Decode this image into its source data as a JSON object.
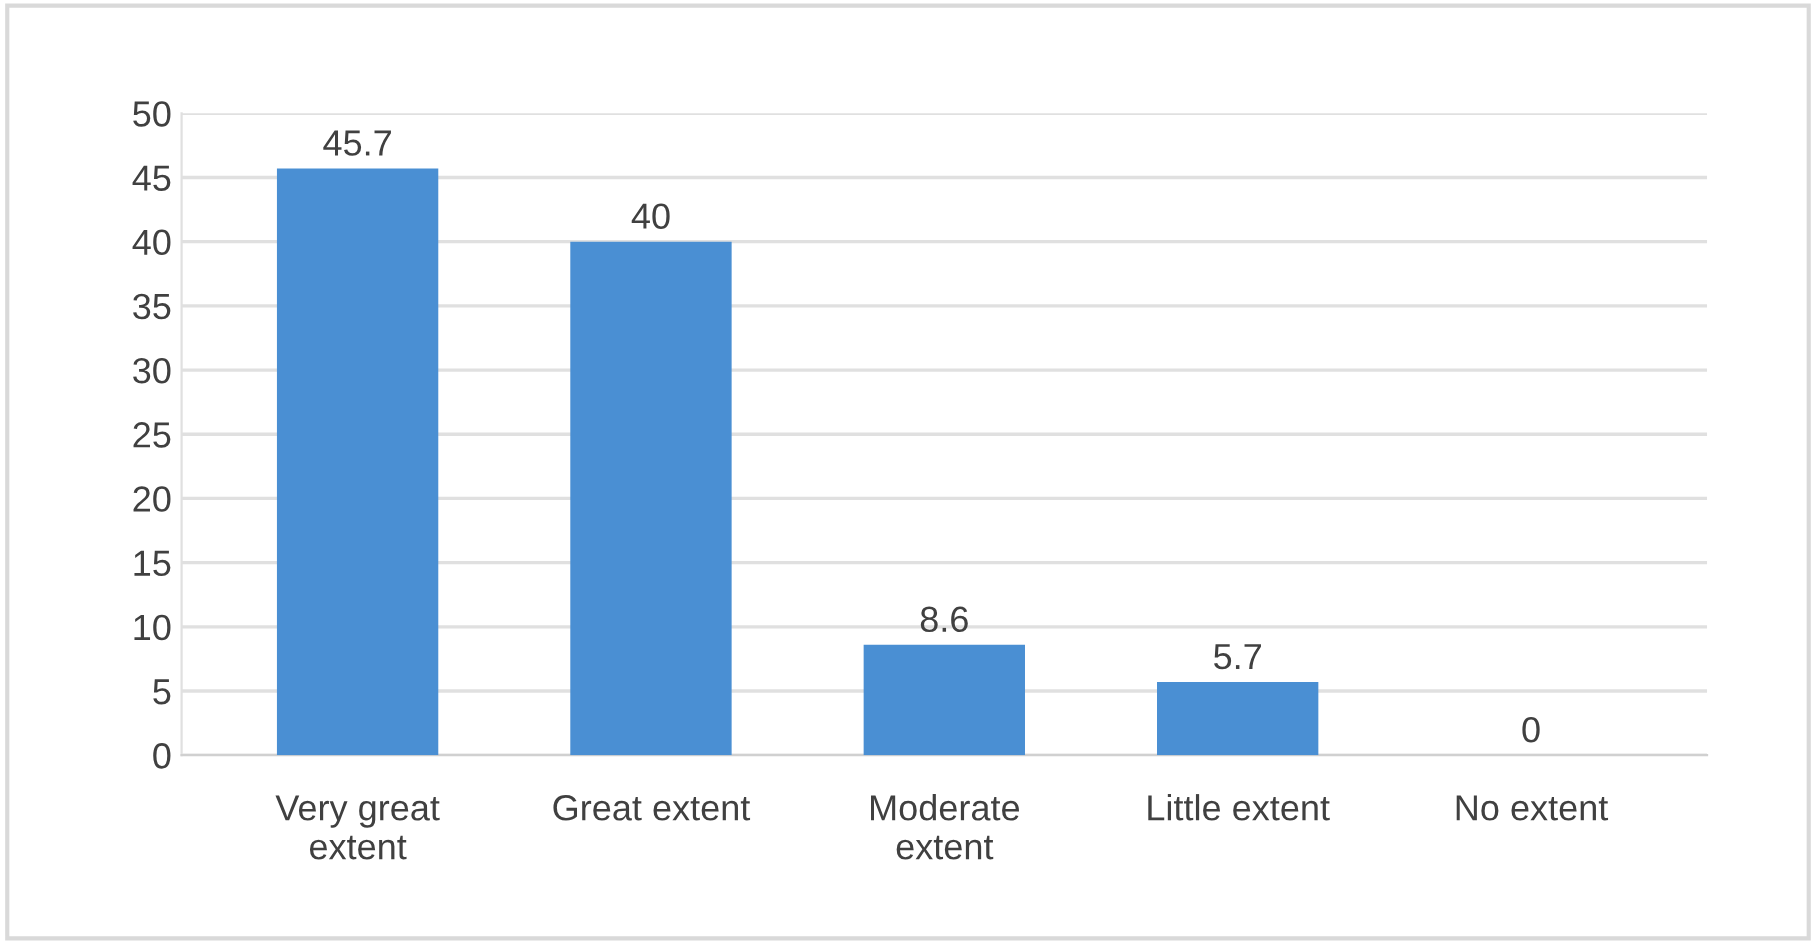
{
  "chart_data": {
    "type": "bar",
    "categories": [
      "Very great extent",
      "Great extent",
      "Moderate extent",
      "Little extent",
      "No extent"
    ],
    "values": [
      45.7,
      40,
      8.6,
      5.7,
      0
    ],
    "color": "#4a8fd3",
    "ylim": [
      0,
      50
    ],
    "yticks": [
      0,
      5,
      10,
      15,
      20,
      25,
      30,
      35,
      40,
      45,
      50
    ],
    "grid": "y",
    "data_labels": true
  }
}
